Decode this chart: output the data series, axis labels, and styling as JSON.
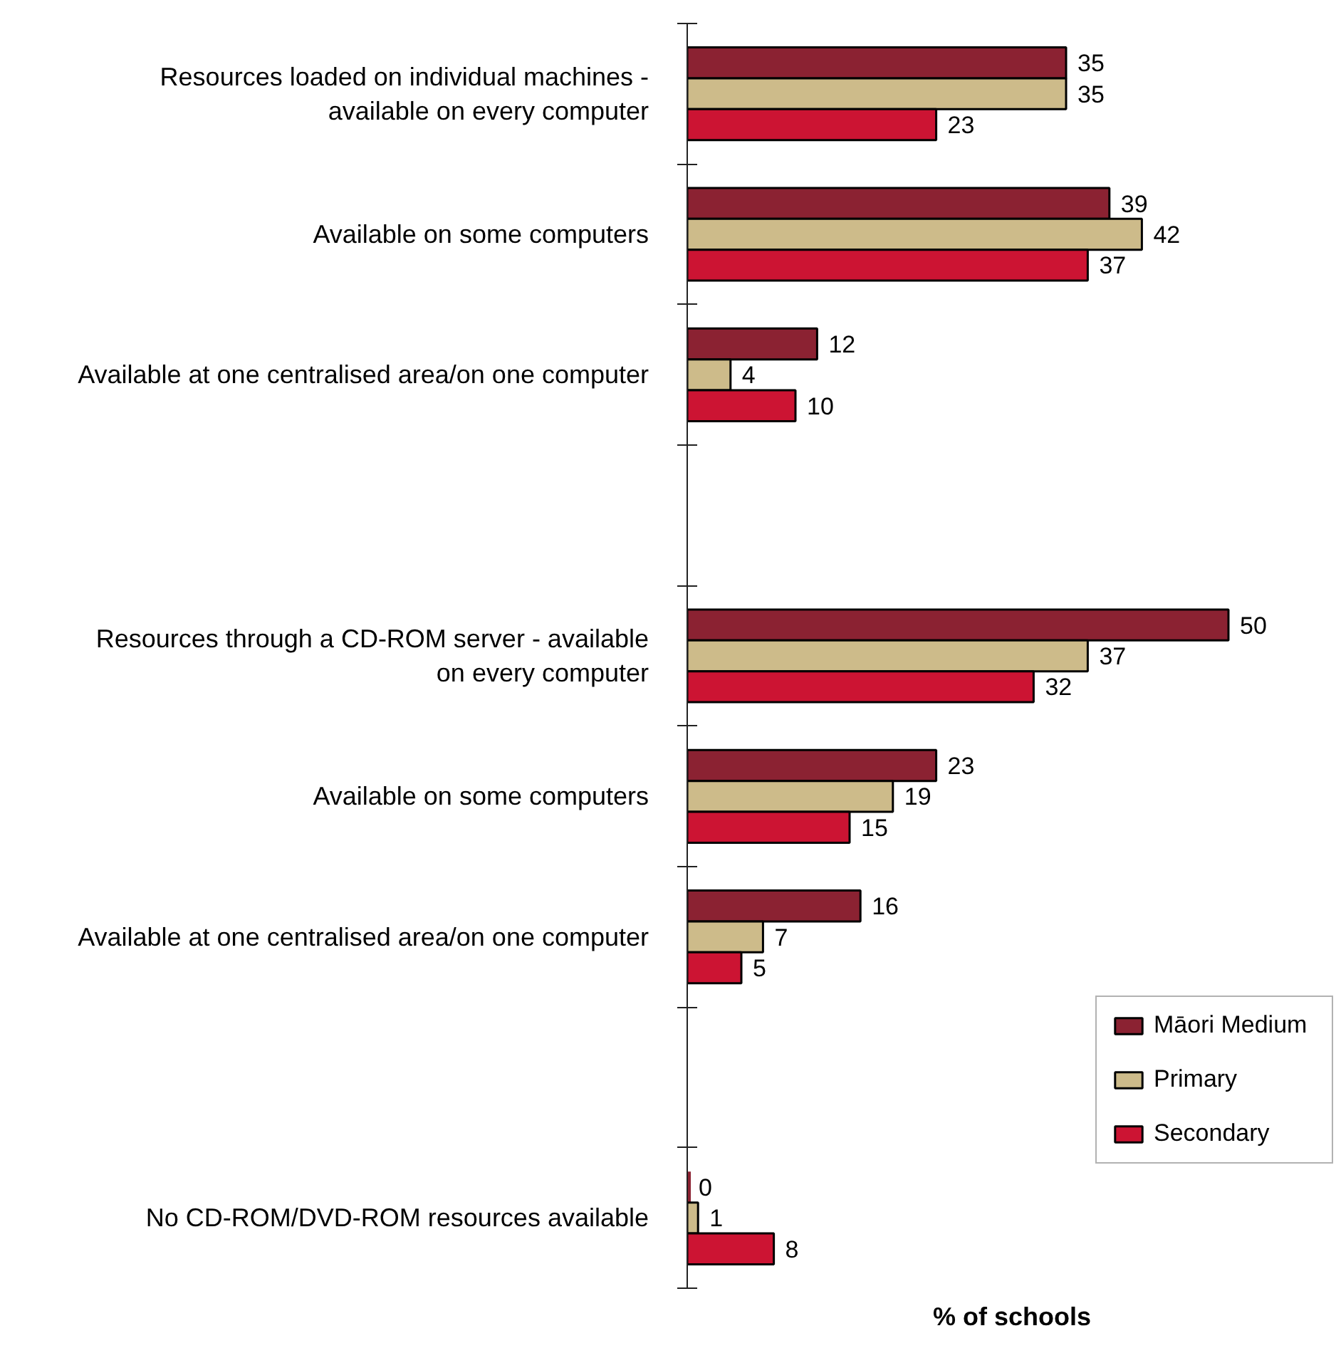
{
  "chart_data": {
    "type": "bar",
    "orientation": "horizontal",
    "xlabel": "% of schools",
    "categories": [
      "Resources loaded on individual machines - available on every computer",
      "Available on some computers",
      "Available at one centralised area/on one computer",
      null,
      "Resources through a CD-ROM server - available on every computer",
      "Available on some computers",
      "Available at one centralised area/on one computer",
      null,
      "No CD-ROM/DVD-ROM resources available"
    ],
    "series": [
      {
        "name": "Māori Medium",
        "color": "#8b2232",
        "values": [
          35,
          39,
          12,
          null,
          50,
          23,
          16,
          null,
          0
        ]
      },
      {
        "name": "Primary",
        "color": "#cdbb8a",
        "values": [
          35,
          42,
          4,
          null,
          37,
          19,
          7,
          null,
          1
        ]
      },
      {
        "name": "Secondary",
        "color": "#cc1433",
        "values": [
          23,
          37,
          10,
          null,
          32,
          15,
          5,
          null,
          8
        ]
      }
    ],
    "xlim": [
      0,
      60
    ],
    "data_labels": true,
    "legend": "bottom right",
    "tick_labels": "y",
    "grid": false
  }
}
